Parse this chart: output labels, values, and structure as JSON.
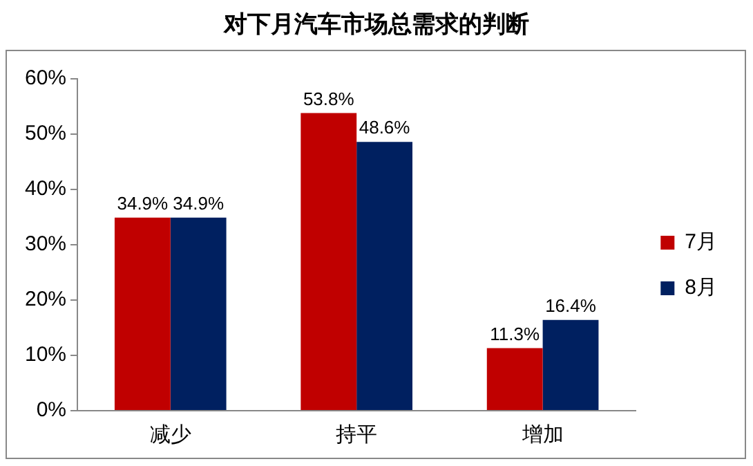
{
  "chart_data": {
    "type": "bar",
    "title": "对下月汽车市场总需求的判断",
    "categories": [
      "减少",
      "持平",
      "增加"
    ],
    "series": [
      {
        "name": "7月",
        "color": "#c00000",
        "values": [
          34.9,
          53.8,
          11.3
        ],
        "value_labels": [
          "34.9%",
          "53.8%",
          "11.3%"
        ]
      },
      {
        "name": "8月",
        "color": "#002060",
        "values": [
          34.9,
          48.6,
          16.4
        ],
        "value_labels": [
          "34.9%",
          "48.6%",
          "16.4%"
        ]
      }
    ],
    "ylim": [
      0,
      60
    ],
    "yticks": [
      {
        "value": 0,
        "label": "0%"
      },
      {
        "value": 10,
        "label": "10%"
      },
      {
        "value": 20,
        "label": "20%"
      },
      {
        "value": 30,
        "label": "30%"
      },
      {
        "value": 40,
        "label": "40%"
      },
      {
        "value": 50,
        "label": "50%"
      },
      {
        "value": 60,
        "label": "60%"
      }
    ],
    "grid": false,
    "legend": "right"
  }
}
